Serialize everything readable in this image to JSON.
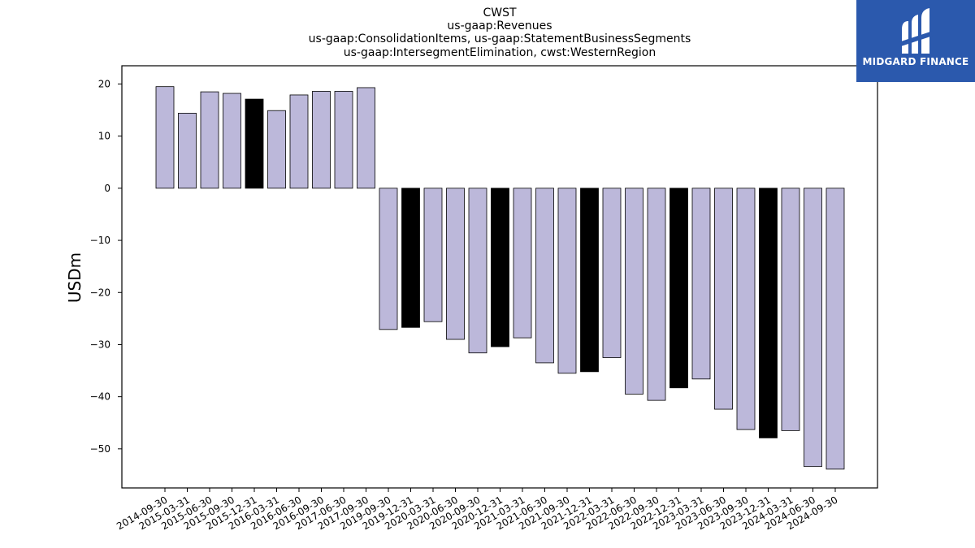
{
  "chart_data": {
    "type": "bar",
    "title_lines": [
      "CWST",
      "us-gaap:Revenues",
      "us-gaap:ConsolidationItems, us-gaap:StatementBusinessSegments",
      "us-gaap:IntersegmentElimination, cwst:WesternRegion"
    ],
    "ylabel": "USDm",
    "ylim": [
      -57.5,
      23.5
    ],
    "yticks": [
      20,
      10,
      0,
      -10,
      -20,
      -30,
      -40,
      -50
    ],
    "categories": [
      "2014-09-30",
      "2015-03-31",
      "2015-06-30",
      "2015-09-30",
      "2015-12-31",
      "2016-03-31",
      "2016-06-30",
      "2016-09-30",
      "2017-06-30",
      "2017-09-30",
      "2019-09-30",
      "2019-12-31",
      "2020-03-31",
      "2020-06-30",
      "2020-09-30",
      "2020-12-31",
      "2021-03-31",
      "2021-06-30",
      "2021-09-30",
      "2021-12-31",
      "2022-03-31",
      "2022-06-30",
      "2022-09-30",
      "2022-12-31",
      "2023-03-31",
      "2023-06-30",
      "2023-09-30",
      "2023-12-31",
      "2024-03-31",
      "2024-06-30",
      "2024-09-30"
    ],
    "values": [
      19.5,
      14.4,
      18.5,
      18.2,
      17.1,
      14.9,
      17.9,
      18.6,
      18.6,
      19.3,
      -27.1,
      -26.7,
      -25.6,
      -29.0,
      -31.6,
      -30.4,
      -28.7,
      -33.5,
      -35.5,
      -35.2,
      -32.5,
      -39.5,
      -40.7,
      -38.3,
      -36.6,
      -42.4,
      -46.3,
      -47.9,
      -46.5,
      -53.4,
      -53.9
    ],
    "highlight": [
      false,
      false,
      false,
      false,
      true,
      false,
      false,
      false,
      false,
      false,
      false,
      true,
      false,
      false,
      false,
      true,
      false,
      false,
      false,
      true,
      false,
      false,
      false,
      true,
      false,
      false,
      false,
      true,
      false,
      false,
      false
    ],
    "colors": {
      "bar": "#bcb8da",
      "highlight": "#000000",
      "edge": "#000000"
    },
    "grid": false,
    "legend": "none"
  },
  "logo": {
    "text": "MIDGARD FINANCE",
    "bg": "#2b59ad"
  }
}
